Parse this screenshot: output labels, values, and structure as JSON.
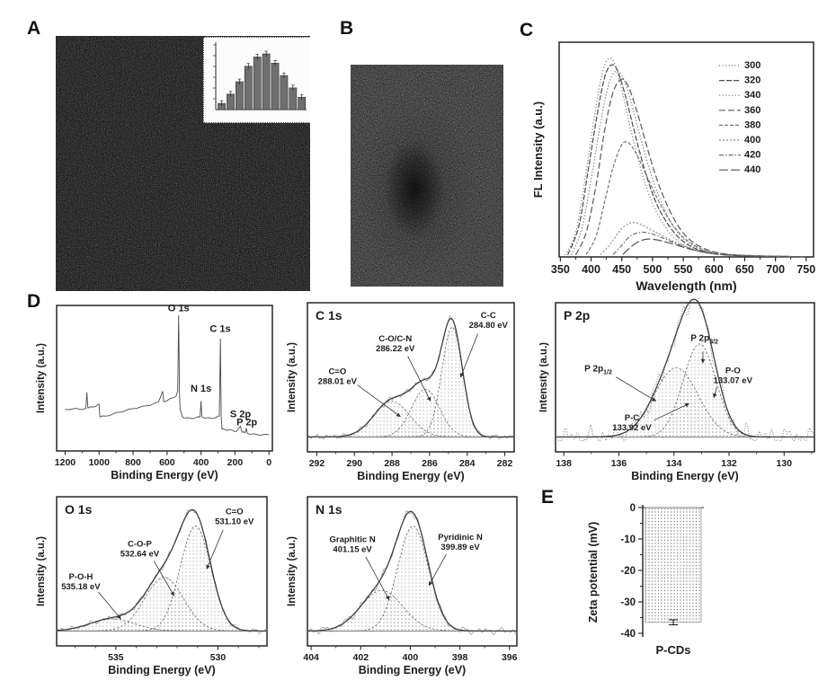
{
  "panels": {
    "a": {
      "label": "A"
    },
    "b": {
      "label": "B"
    },
    "c": {
      "label": "C"
    },
    "d": {
      "label": "D"
    },
    "e": {
      "label": "E"
    }
  },
  "chart_data": [
    {
      "id": "fl_emission",
      "type": "line",
      "xlabel": "Wavelength (nm)",
      "ylabel": "FL Intensity (a.u.)",
      "xlim": [
        350,
        750
      ],
      "xticks": [
        350,
        400,
        450,
        500,
        550,
        600,
        650,
        700,
        750
      ],
      "legend_position": "upper right",
      "series": [
        {
          "name": "300",
          "color": "#666666",
          "dash": "1 2.5",
          "points": [
            [
              358,
              0.01
            ],
            [
              375,
              0.12
            ],
            [
              390,
              0.38
            ],
            [
              405,
              0.68
            ],
            [
              418,
              0.9
            ],
            [
              428,
              0.97
            ],
            [
              438,
              0.95
            ],
            [
              450,
              0.82
            ],
            [
              465,
              0.62
            ],
            [
              480,
              0.44
            ],
            [
              495,
              0.3
            ],
            [
              510,
              0.2
            ],
            [
              530,
              0.11
            ],
            [
              550,
              0.06
            ],
            [
              575,
              0.03
            ],
            [
              600,
              0.015
            ],
            [
              650,
              0.006
            ],
            [
              700,
              0.002
            ],
            [
              750,
              0.001
            ]
          ]
        },
        {
          "name": "320",
          "color": "#4a4a4a",
          "dash": "6 2",
          "points": [
            [
              362,
              0.01
            ],
            [
              380,
              0.15
            ],
            [
              395,
              0.42
            ],
            [
              410,
              0.7
            ],
            [
              422,
              0.88
            ],
            [
              432,
              0.94
            ],
            [
              442,
              0.92
            ],
            [
              455,
              0.8
            ],
            [
              470,
              0.62
            ],
            [
              485,
              0.45
            ],
            [
              500,
              0.31
            ],
            [
              515,
              0.21
            ],
            [
              535,
              0.12
            ],
            [
              555,
              0.065
            ],
            [
              580,
              0.03
            ],
            [
              610,
              0.013
            ],
            [
              660,
              0.005
            ],
            [
              750,
              0.001
            ]
          ]
        },
        {
          "name": "340",
          "color": "#8a8a8a",
          "dash": "1.5 2",
          "points": [
            [
              368,
              0.01
            ],
            [
              385,
              0.14
            ],
            [
              400,
              0.38
            ],
            [
              415,
              0.65
            ],
            [
              428,
              0.84
            ],
            [
              440,
              0.91
            ],
            [
              452,
              0.88
            ],
            [
              465,
              0.76
            ],
            [
              480,
              0.59
            ],
            [
              495,
              0.43
            ],
            [
              510,
              0.3
            ],
            [
              530,
              0.17
            ],
            [
              550,
              0.09
            ],
            [
              575,
              0.042
            ],
            [
              605,
              0.018
            ],
            [
              660,
              0.006
            ],
            [
              750,
              0.001
            ]
          ]
        },
        {
          "name": "360",
          "color": "#5a5a5a",
          "dash": "7 3",
          "points": [
            [
              375,
              0.01
            ],
            [
              392,
              0.12
            ],
            [
              408,
              0.35
            ],
            [
              422,
              0.62
            ],
            [
              435,
              0.8
            ],
            [
              448,
              0.87
            ],
            [
              460,
              0.84
            ],
            [
              475,
              0.71
            ],
            [
              490,
              0.55
            ],
            [
              505,
              0.4
            ],
            [
              520,
              0.28
            ],
            [
              540,
              0.16
            ],
            [
              560,
              0.086
            ],
            [
              585,
              0.04
            ],
            [
              615,
              0.016
            ],
            [
              665,
              0.006
            ],
            [
              750,
              0.001
            ]
          ]
        },
        {
          "name": "380",
          "color": "#777777",
          "dash": "4 2",
          "points": [
            [
              392,
              0.012
            ],
            [
              408,
              0.1
            ],
            [
              422,
              0.27
            ],
            [
              435,
              0.43
            ],
            [
              448,
              0.54
            ],
            [
              458,
              0.565
            ],
            [
              470,
              0.525
            ],
            [
              485,
              0.435
            ],
            [
              500,
              0.335
            ],
            [
              515,
              0.245
            ],
            [
              532,
              0.16
            ],
            [
              552,
              0.092
            ],
            [
              575,
              0.046
            ],
            [
              600,
              0.021
            ],
            [
              650,
              0.007
            ],
            [
              750,
              0.001
            ]
          ]
        },
        {
          "name": "400",
          "color": "#8f8f8f",
          "dash": "2 2",
          "points": [
            [
              415,
              0.012
            ],
            [
              428,
              0.05
            ],
            [
              440,
              0.1
            ],
            [
              452,
              0.145
            ],
            [
              465,
              0.168
            ],
            [
              478,
              0.163
            ],
            [
              492,
              0.142
            ],
            [
              508,
              0.117
            ],
            [
              525,
              0.09
            ],
            [
              545,
              0.061
            ],
            [
              568,
              0.036
            ],
            [
              595,
              0.018
            ],
            [
              640,
              0.007
            ],
            [
              750,
              0.001
            ]
          ]
        },
        {
          "name": "420",
          "color": "#6f6f6f",
          "dash": "5 2 1.5 2",
          "points": [
            [
              436,
              0.012
            ],
            [
              448,
              0.05
            ],
            [
              460,
              0.092
            ],
            [
              472,
              0.115
            ],
            [
              485,
              0.121
            ],
            [
              500,
              0.112
            ],
            [
              518,
              0.091
            ],
            [
              538,
              0.066
            ],
            [
              560,
              0.042
            ],
            [
              585,
              0.022
            ],
            [
              620,
              0.009
            ],
            [
              680,
              0.003
            ],
            [
              750,
              0.001
            ]
          ]
        },
        {
          "name": "440",
          "color": "#555555",
          "dash": "10 3",
          "points": [
            [
              452,
              0.012
            ],
            [
              462,
              0.042
            ],
            [
              475,
              0.071
            ],
            [
              488,
              0.086
            ],
            [
              502,
              0.086
            ],
            [
              518,
              0.076
            ],
            [
              538,
              0.059
            ],
            [
              560,
              0.039
            ],
            [
              585,
              0.023
            ],
            [
              615,
              0.011
            ],
            [
              660,
              0.004
            ],
            [
              750,
              0.001
            ]
          ]
        }
      ]
    },
    {
      "id": "xps_survey",
      "type": "line",
      "xlabel": "Binding Energy (eV)",
      "ylabel": "Intensity (a.u.)",
      "xlim": [
        1250,
        -20
      ],
      "xticks": [
        1200,
        1000,
        800,
        600,
        400,
        200,
        0
      ],
      "x_reversed": true,
      "peak_labels": [
        {
          "text": "O 1s",
          "x": 532,
          "y": 0.99
        },
        {
          "text": "C 1s",
          "x": 287,
          "y": 0.84
        },
        {
          "text": "N 1s",
          "x": 400,
          "y": 0.41
        },
        {
          "text": "S 2p",
          "x": 168,
          "y": 0.225
        },
        {
          "text": "P 2p",
          "x": 130,
          "y": 0.165
        }
      ],
      "points": [
        [
          1200,
          0.3
        ],
        [
          1150,
          0.306
        ],
        [
          1110,
          0.3
        ],
        [
          1078,
          0.308
        ],
        [
          1072,
          0.425
        ],
        [
          1066,
          0.31
        ],
        [
          1040,
          0.318
        ],
        [
          1012,
          0.328
        ],
        [
          1000,
          0.338
        ],
        [
          995,
          0.246
        ],
        [
          960,
          0.252
        ],
        [
          920,
          0.266
        ],
        [
          880,
          0.28
        ],
        [
          840,
          0.294
        ],
        [
          800,
          0.306
        ],
        [
          760,
          0.316
        ],
        [
          720,
          0.326
        ],
        [
          680,
          0.34
        ],
        [
          652,
          0.352
        ],
        [
          626,
          0.432
        ],
        [
          620,
          0.356
        ],
        [
          592,
          0.37
        ],
        [
          566,
          0.384
        ],
        [
          546,
          0.398
        ],
        [
          537,
          0.432
        ],
        [
          532,
          0.98
        ],
        [
          527,
          0.43
        ],
        [
          523,
          0.3
        ],
        [
          510,
          0.248
        ],
        [
          490,
          0.238
        ],
        [
          460,
          0.236
        ],
        [
          432,
          0.24
        ],
        [
          406,
          0.246
        ],
        [
          400,
          0.362
        ],
        [
          395,
          0.246
        ],
        [
          368,
          0.238
        ],
        [
          340,
          0.236
        ],
        [
          312,
          0.242
        ],
        [
          292,
          0.252
        ],
        [
          286,
          0.812
        ],
        [
          281,
          0.244
        ],
        [
          276,
          0.158
        ],
        [
          256,
          0.152
        ],
        [
          236,
          0.152
        ],
        [
          212,
          0.146
        ],
        [
          190,
          0.142
        ],
        [
          168,
          0.178
        ],
        [
          158,
          0.136
        ],
        [
          140,
          0.132
        ],
        [
          134,
          0.162
        ],
        [
          127,
          0.128
        ],
        [
          100,
          0.122
        ],
        [
          70,
          0.118
        ],
        [
          40,
          0.116
        ],
        [
          0,
          0.118
        ]
      ]
    },
    {
      "id": "xps_c1s",
      "type": "area",
      "title": "C 1s",
      "xlabel": "Binding Energy (eV)",
      "ylabel": "Intensity (a.u.)",
      "xlim": [
        292.5,
        281.5
      ],
      "x_reversed": true,
      "xticks": [
        292,
        290,
        288,
        286,
        284,
        282
      ],
      "noise": 0.014,
      "peaks": [
        {
          "name": "C-C",
          "binding_energy_label": "284.80 eV",
          "center": 284.8,
          "sigma": 0.55,
          "amplitude": 0.92
        },
        {
          "name": "C-O/C-N",
          "binding_energy_label": "286.22 eV",
          "center": 286.22,
          "sigma": 0.75,
          "amplitude": 0.4
        },
        {
          "name": "C=O",
          "binding_energy_label": "288.01 eV",
          "center": 288.01,
          "sigma": 0.95,
          "amplitude": 0.3
        }
      ]
    },
    {
      "id": "xps_p2p",
      "type": "area",
      "title": "P 2p",
      "xlabel": "Binding Energy (eV)",
      "ylabel": "Intensity (a.u.)",
      "xlim": [
        138.3,
        128.9
      ],
      "x_reversed": true,
      "xticks": [
        138,
        136,
        134,
        132,
        130
      ],
      "noise": 0.055,
      "peaks": [
        {
          "name": "P-C",
          "binding_energy_label": "133.92 eV",
          "center": 133.92,
          "sigma": 0.8,
          "amplitude": 0.58,
          "spin_orbit_base": "P 2p",
          "spin_orbit_sub": "1/2"
        },
        {
          "name": "P-O",
          "binding_energy_label": "133.07 eV",
          "center": 133.07,
          "sigma": 0.6,
          "amplitude": 0.78,
          "spin_orbit_base": "P 2p",
          "spin_orbit_sub": "3/2"
        }
      ]
    },
    {
      "id": "xps_o1s",
      "type": "area",
      "title": "O 1s",
      "xlabel": "Binding Energy (eV)",
      "ylabel": "Intensity (a.u.)",
      "xlim": [
        537.9,
        527.6
      ],
      "x_reversed": true,
      "xticks": [
        535,
        530
      ],
      "noise": 0.014,
      "peaks": [
        {
          "name": "C=O",
          "binding_energy_label": "531.10 eV",
          "center": 531.1,
          "sigma": 0.75,
          "amplitude": 0.88
        },
        {
          "name": "C-O-P",
          "binding_energy_label": "532.64 eV",
          "center": 532.64,
          "sigma": 0.95,
          "amplitude": 0.45
        },
        {
          "name": "P-O-H",
          "binding_energy_label": "535.18 eV",
          "center": 535.18,
          "sigma": 1.1,
          "amplitude": 0.1
        }
      ]
    },
    {
      "id": "xps_n1s",
      "type": "area",
      "title": "N 1s",
      "xlabel": "Binding Energy (eV)",
      "ylabel": "Intensity (a.u.)",
      "xlim": [
        404.15,
        395.7
      ],
      "x_reversed": true,
      "xticks": [
        404,
        402,
        400,
        398,
        396
      ],
      "noise": 0.02,
      "peaks": [
        {
          "name": "Graphitic N",
          "binding_energy_label": "401.15 eV",
          "center": 401.15,
          "sigma": 0.85,
          "amplitude": 0.34
        },
        {
          "name": "Pyridinic N",
          "binding_energy_label": "399.89 eV",
          "center": 399.89,
          "sigma": 0.62,
          "amplitude": 0.88
        }
      ]
    },
    {
      "id": "zeta_potential",
      "type": "bar",
      "ylabel": "Zeta potential (mV)",
      "ylim": [
        0,
        -40
      ],
      "yticks": [
        0,
        -10,
        -20,
        -30,
        -40
      ],
      "categories": [
        "P-CDs"
      ],
      "values": [
        -36.5
      ],
      "errors": [
        0.8
      ]
    },
    {
      "id": "size_histogram",
      "type": "bar",
      "note": "particle size distribution inset of panel A",
      "values": [
        2,
        5,
        9,
        14,
        17,
        18,
        15,
        11,
        7,
        4
      ]
    }
  ]
}
